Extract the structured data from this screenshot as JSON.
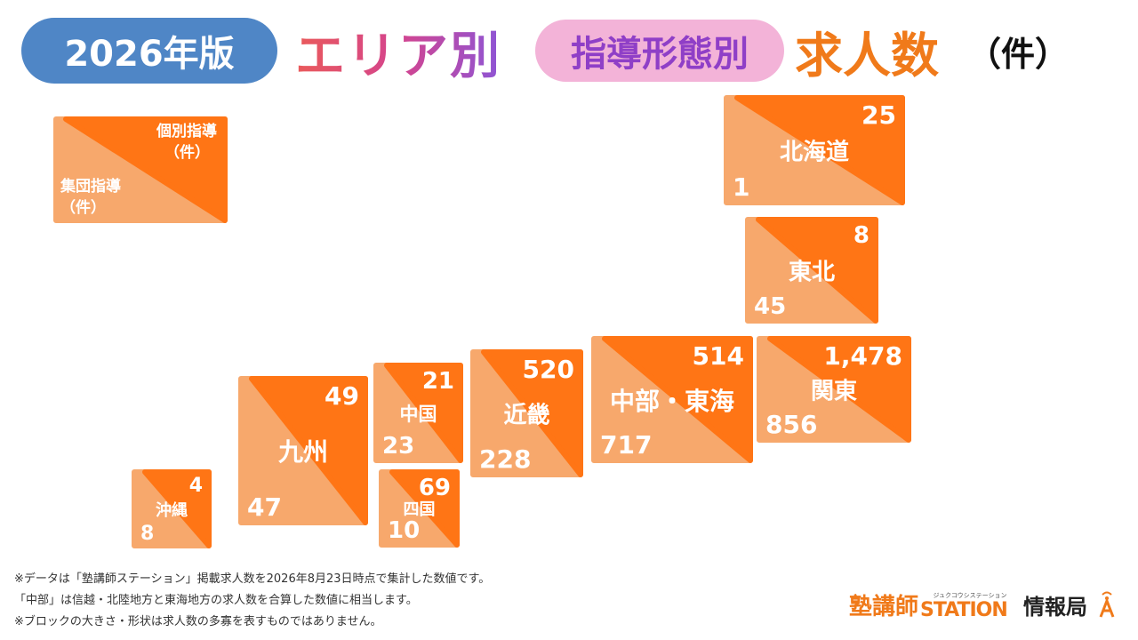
{
  "header": {
    "year": "2026年版",
    "area": "エリア別",
    "type": "指導形態別",
    "count": "求人数",
    "unit": "（件）"
  },
  "legend": {
    "top_label": "個別指導",
    "top_unit": "（件）",
    "bottom_label": "集団指導",
    "bottom_unit": "（件）"
  },
  "colors": {
    "individual": "#ff7515",
    "group": "#f7a86c",
    "year_pill": "#4f86c6",
    "type_pill": "#f3b3d8"
  },
  "chart_data": {
    "type": "table",
    "title": "2026年版 エリア別 指導形態別 求人数（件）",
    "series": [
      {
        "name": "個別指導（件）",
        "key": "individual"
      },
      {
        "name": "集団指導（件）",
        "key": "group"
      }
    ],
    "regions": [
      {
        "name": "北海道",
        "individual": "25",
        "group": "1"
      },
      {
        "name": "東北",
        "individual": "8",
        "group": "45"
      },
      {
        "name": "関東",
        "individual": "1,478",
        "group": "856"
      },
      {
        "name": "中部・東海",
        "individual": "514",
        "group": "717"
      },
      {
        "name": "近畿",
        "individual": "520",
        "group": "228"
      },
      {
        "name": "中国",
        "individual": "21",
        "group": "23"
      },
      {
        "name": "四国",
        "individual": "69",
        "group": "10"
      },
      {
        "name": "九州",
        "individual": "49",
        "group": "47"
      },
      {
        "name": "沖縄",
        "individual": "4",
        "group": "8"
      }
    ]
  },
  "notes": [
    "※データは「塾講師ステーション」掲載求人数を2026年8月23日時点で集計した数値です。",
    "「中部」は信越・北陸地方と東海地方の求人数を合算した数値に相当します。",
    "※ブロックの大きさ・形状は求人数の多寡を表すものではありません。"
  ],
  "logo": {
    "brand": "塾講師",
    "station": "STATION",
    "sub": "ジュクコウシステーション",
    "info": "情報局"
  }
}
